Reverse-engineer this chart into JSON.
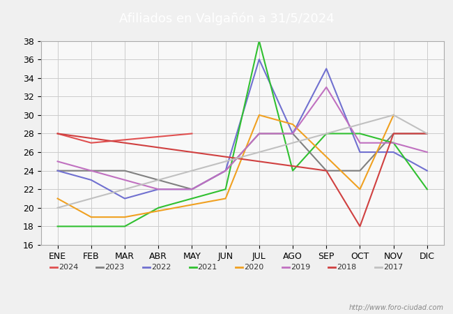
{
  "title": "Afiliados en Valgañón a 31/5/2024",
  "title_bg_color": "#5b9bd5",
  "title_text_color": "#ffffff",
  "months": [
    "ENE",
    "FEB",
    "MAR",
    "ABR",
    "MAY",
    "JUN",
    "JUL",
    "AGO",
    "SEP",
    "OCT",
    "NOV",
    "DIC"
  ],
  "ylim": [
    16,
    38
  ],
  "yticks": [
    16,
    18,
    20,
    22,
    24,
    26,
    28,
    30,
    32,
    34,
    36,
    38
  ],
  "series": {
    "2024": {
      "color": "#e05050",
      "data": [
        28,
        27,
        null,
        null,
        28,
        null,
        null,
        null,
        null,
        null,
        null,
        null
      ]
    },
    "2023": {
      "color": "#808080",
      "data": [
        24,
        24,
        24,
        23,
        22,
        24,
        28,
        28,
        24,
        24,
        28,
        28
      ]
    },
    "2022": {
      "color": "#7070d0",
      "data": [
        24,
        23,
        21,
        22,
        22,
        24,
        36,
        28,
        35,
        26,
        26,
        24
      ]
    },
    "2021": {
      "color": "#30c030",
      "data": [
        18,
        18,
        18,
        20,
        21,
        22,
        38,
        24,
        28,
        28,
        27,
        22
      ]
    },
    "2020": {
      "color": "#f0a020",
      "data": [
        21,
        19,
        19,
        null,
        null,
        21,
        30,
        29,
        null,
        22,
        30,
        null
      ]
    },
    "2019": {
      "color": "#c070c0",
      "data": [
        25,
        null,
        23,
        22,
        22,
        24,
        28,
        28,
        33,
        27,
        27,
        26
      ]
    },
    "2018": {
      "color": "#d04040",
      "data": [
        28,
        null,
        null,
        null,
        null,
        null,
        null,
        null,
        24,
        18,
        28,
        28
      ]
    },
    "2017": {
      "color": "#c0c0c0",
      "data": [
        20,
        null,
        null,
        null,
        null,
        null,
        null,
        null,
        null,
        null,
        30,
        28
      ]
    }
  },
  "legend_order": [
    "2024",
    "2023",
    "2022",
    "2021",
    "2020",
    "2019",
    "2018",
    "2017"
  ],
  "watermark": "http://www.foro-ciudad.com",
  "grid_color": "#cccccc",
  "bg_color": "#f0f0f0",
  "plot_bg": "#f8f8f8"
}
